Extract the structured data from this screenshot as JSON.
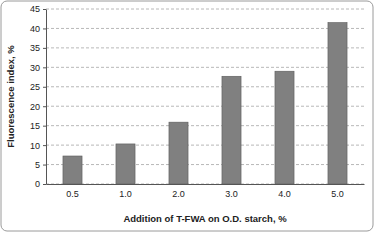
{
  "chart_data": {
    "type": "bar",
    "x_label": "Addition of T-FWA on O.D. starch, %",
    "y_label": "Fluorescence index, %",
    "categories": [
      "0.5",
      "1.0",
      "2.0",
      "3.0",
      "4.0",
      "5.0"
    ],
    "values": [
      7.2,
      10.3,
      15.9,
      27.7,
      29.0,
      41.5
    ],
    "color": "#808080",
    "ylim": [
      0,
      45
    ],
    "yticks": [
      0,
      5,
      10,
      15,
      20,
      25,
      30,
      35,
      40,
      45
    ],
    "grid": true
  }
}
